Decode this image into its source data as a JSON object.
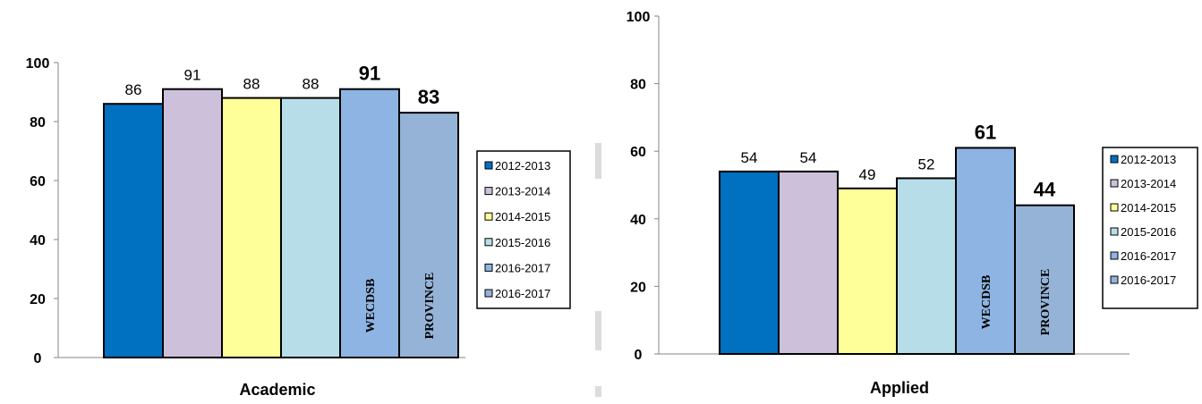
{
  "colors": {
    "series": [
      "#0070C0",
      "#CCC0DA",
      "#FFFF99",
      "#B7DEE8",
      "#8DB4E2",
      "#95B3D7"
    ],
    "axis": "#868686",
    "text": "#000000"
  },
  "chart_data": [
    {
      "type": "bar",
      "title": "",
      "xlabel": "Academic",
      "ylabel": "",
      "ylim": [
        0,
        100
      ],
      "yticks": [
        "0",
        "20",
        "40",
        "60",
        "80",
        "100"
      ],
      "grid": false,
      "legend_position": "right",
      "series": [
        {
          "name": "2012-2013",
          "values": [
            86
          ],
          "label": "86",
          "bold": false
        },
        {
          "name": "2013-2014",
          "values": [
            91
          ],
          "label": "91",
          "bold": false
        },
        {
          "name": "2014-2015",
          "values": [
            88
          ],
          "label": "88",
          "bold": false
        },
        {
          "name": "2015-2016",
          "values": [
            88
          ],
          "label": "88",
          "bold": false
        },
        {
          "name": "2016-2017",
          "values": [
            91
          ],
          "label": "91",
          "bold": true,
          "inner_label": "WECDSB"
        },
        {
          "name": "2016-2017",
          "values": [
            83
          ],
          "label": "83",
          "bold": true,
          "inner_label": "PROVINCE"
        }
      ]
    },
    {
      "type": "bar",
      "title": "",
      "xlabel": "Applied",
      "ylabel": "",
      "ylim": [
        0,
        100
      ],
      "yticks": [
        "0",
        "20",
        "40",
        "60",
        "80",
        "100"
      ],
      "grid": false,
      "legend_position": "right",
      "series": [
        {
          "name": "2012-2013",
          "values": [
            54
          ],
          "label": "54",
          "bold": false
        },
        {
          "name": "2013-2014",
          "values": [
            54
          ],
          "label": "54",
          "bold": false
        },
        {
          "name": "2014-2015",
          "values": [
            49
          ],
          "label": "49",
          "bold": false
        },
        {
          "name": "2015-2016",
          "values": [
            52
          ],
          "label": "52",
          "bold": false
        },
        {
          "name": "2016-2017",
          "values": [
            61
          ],
          "label": "61",
          "bold": true,
          "inner_label": "WECDSB"
        },
        {
          "name": "2016-2017",
          "values": [
            44
          ],
          "label": "44",
          "bold": true,
          "inner_label": "PROVINCE"
        }
      ]
    }
  ]
}
